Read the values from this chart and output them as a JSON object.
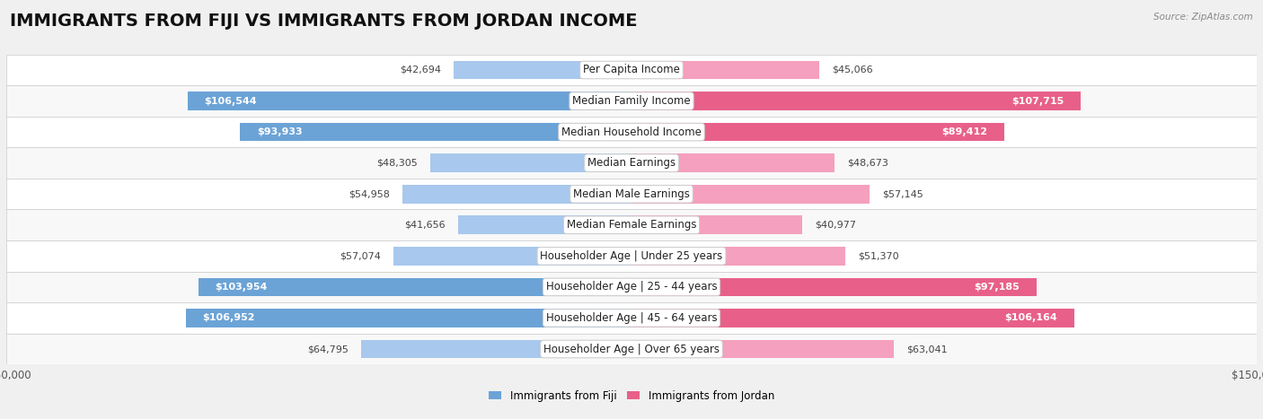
{
  "title": "IMMIGRANTS FROM FIJI VS IMMIGRANTS FROM JORDAN INCOME",
  "source": "Source: ZipAtlas.com",
  "categories": [
    "Per Capita Income",
    "Median Family Income",
    "Median Household Income",
    "Median Earnings",
    "Median Male Earnings",
    "Median Female Earnings",
    "Householder Age | Under 25 years",
    "Householder Age | 25 - 44 years",
    "Householder Age | 45 - 64 years",
    "Householder Age | Over 65 years"
  ],
  "fiji_values": [
    42694,
    106544,
    93933,
    48305,
    54958,
    41656,
    57074,
    103954,
    106952,
    64795
  ],
  "jordan_values": [
    45066,
    107715,
    89412,
    48673,
    57145,
    40977,
    51370,
    97185,
    106164,
    63041
  ],
  "fiji_color_strong": "#6ba3d6",
  "fiji_color_light": "#a8c8ed",
  "jordan_color_strong": "#e8608a",
  "jordan_color_light": "#f4a0be",
  "max_value": 150000,
  "background_color": "#f0f0f0",
  "row_bg_even": "#f8f8f8",
  "row_bg_odd": "#ffffff",
  "fiji_legend": "Immigrants from Fiji",
  "jordan_legend": "Immigrants from Jordan",
  "title_fontsize": 14,
  "label_fontsize": 8.5,
  "value_fontsize": 8.0,
  "bar_height": 0.6,
  "strong_threshold": 70000
}
